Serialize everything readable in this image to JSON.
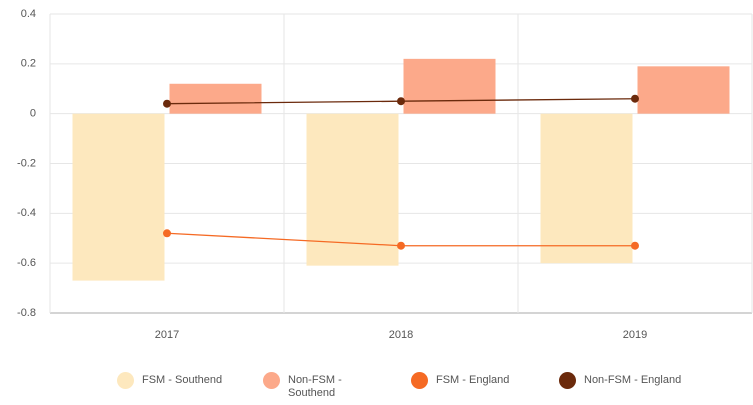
{
  "chart_data": {
    "type": "bar",
    "categories": [
      "2017",
      "2018",
      "2019"
    ],
    "series": [
      {
        "name": "FSM - Southend",
        "type": "bar",
        "color": "#fde8be",
        "values": [
          -0.67,
          -0.61,
          -0.6
        ]
      },
      {
        "name": "Non-FSM - Southend",
        "type": "bar",
        "color": "#fca98a",
        "values": [
          0.12,
          0.22,
          0.19
        ]
      },
      {
        "name": "FSM - England",
        "type": "line",
        "color": "#f56a24",
        "values": [
          -0.48,
          -0.53,
          -0.53
        ]
      },
      {
        "name": "Non-FSM - England",
        "type": "line",
        "color": "#6b2a0c",
        "values": [
          0.04,
          0.05,
          0.06
        ]
      }
    ],
    "ylim": [
      -0.8,
      0.4
    ],
    "yticks": [
      -0.8,
      -0.6,
      -0.4,
      -0.2,
      0,
      0.2,
      0.4
    ],
    "grid": true,
    "legend": "bottom"
  }
}
